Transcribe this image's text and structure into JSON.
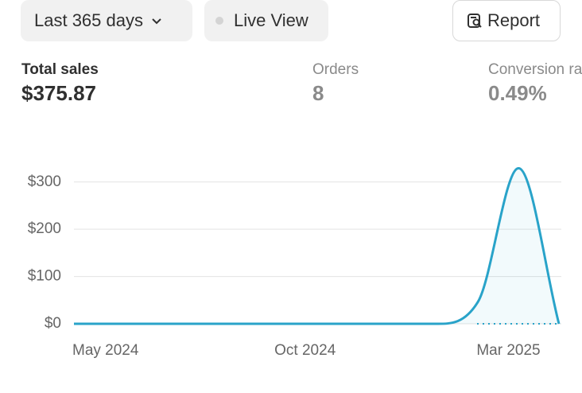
{
  "header": {
    "range_button": "Last 365 days",
    "live_view": "Live View",
    "report": "Report"
  },
  "metrics": [
    {
      "label": "Total sales",
      "value": "$375.87"
    },
    {
      "label": "Orders",
      "value": "8"
    },
    {
      "label": "Conversion rate",
      "value": "0.49%"
    }
  ],
  "chart_data": {
    "type": "line",
    "categories": [
      "May 2024",
      null,
      null,
      null,
      null,
      "Oct 2024",
      null,
      null,
      null,
      null,
      "Mar 2025",
      null,
      null
    ],
    "values": [
      0,
      0,
      0,
      0,
      0,
      0,
      0,
      0,
      0,
      0,
      47,
      329,
      0
    ],
    "color": "#29a3c9",
    "ylim": [
      0,
      340
    ],
    "yticks": [
      {
        "value": 0,
        "label": "$0"
      },
      {
        "value": 100,
        "label": "$100"
      },
      {
        "value": 200,
        "label": "$200"
      },
      {
        "value": 300,
        "label": "$300"
      }
    ],
    "grid": true
  }
}
